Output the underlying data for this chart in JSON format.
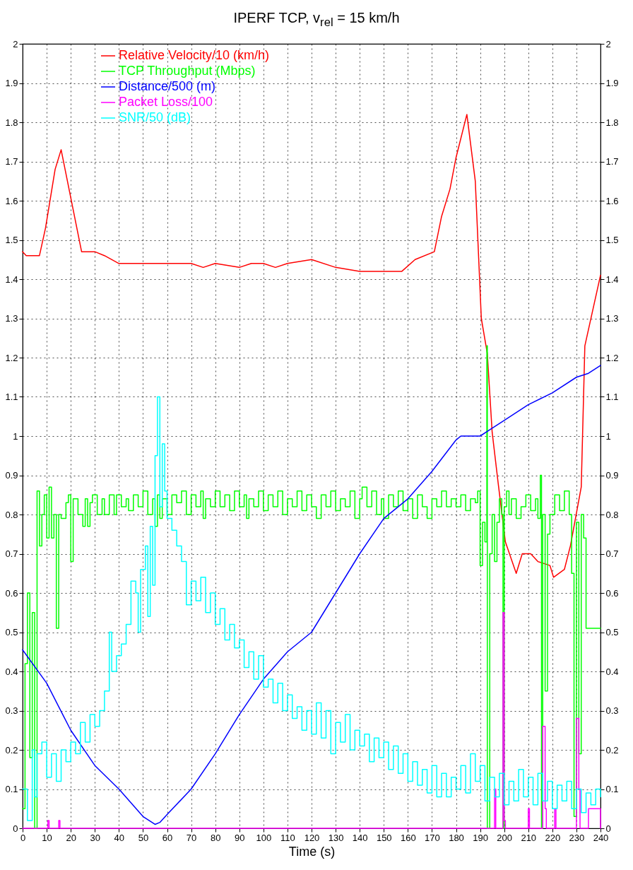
{
  "chart_data": {
    "type": "line",
    "title": "IPERF TCP, v$_{rel}$ = 15 km/h",
    "xlabel": "Time (s)",
    "xlim": [
      0,
      240
    ],
    "xticks": [
      0,
      10,
      20,
      30,
      40,
      50,
      60,
      70,
      80,
      90,
      100,
      110,
      120,
      130,
      140,
      150,
      160,
      170,
      180,
      190,
      200,
      210,
      220,
      230,
      240
    ],
    "ylim": [
      0,
      2
    ],
    "yticks": [
      0,
      0.1,
      0.2,
      0.3,
      0.4,
      0.5,
      0.6,
      0.7,
      0.8,
      0.9,
      1,
      1.1,
      1.2,
      1.3,
      1.4,
      1.5,
      1.6,
      1.7,
      1.8,
      1.9,
      2
    ],
    "y2lim": [
      0,
      2
    ],
    "y2ticks": [
      0,
      0.1,
      0.2,
      0.3,
      0.4,
      0.5,
      0.6,
      0.7,
      0.8,
      0.9,
      1,
      1.1,
      1.2,
      1.3,
      1.4,
      1.5,
      1.6,
      1.7,
      1.8,
      1.9,
      2
    ],
    "grid": true,
    "legend": "top left",
    "series": [
      {
        "name": "Relative Velocity/10 (km/h)",
        "color": "#ff0000",
        "type": "line",
        "x": [
          0,
          1.5,
          7,
          9.5,
          13.5,
          16,
          24.5,
          30,
          34,
          40,
          50,
          60,
          70,
          75,
          80,
          90,
          95,
          100,
          105,
          110,
          120,
          130,
          140,
          150,
          157.5,
          163,
          171,
          174,
          177.5,
          180,
          184.5,
          188,
          190.5,
          193,
          195,
          197.5,
          200.5,
          205,
          207.5,
          211,
          214,
          219,
          220.5,
          225,
          227.5,
          232,
          233.5,
          240
        ],
        "values": [
          1.47,
          1.46,
          1.46,
          1.53,
          1.68,
          1.73,
          1.47,
          1.47,
          1.46,
          1.44,
          1.44,
          1.44,
          1.44,
          1.43,
          1.44,
          1.43,
          1.44,
          1.44,
          1.43,
          1.44,
          1.45,
          1.43,
          1.42,
          1.42,
          1.42,
          1.45,
          1.47,
          1.56,
          1.63,
          1.71,
          1.82,
          1.65,
          1.3,
          1.21,
          1.01,
          0.88,
          0.73,
          0.65,
          0.7,
          0.7,
          0.68,
          0.67,
          0.64,
          0.66,
          0.72,
          0.87,
          1.23,
          1.41
        ]
      },
      {
        "name": "TCP Throughput (Mbps)",
        "color": "#00ff00",
        "type": "step",
        "x": [
          0,
          1,
          2,
          3,
          4,
          5,
          6,
          7,
          8,
          9,
          10,
          11,
          12,
          13,
          14,
          15,
          16,
          18,
          19,
          20,
          21,
          23,
          25,
          26,
          27,
          28,
          29,
          31,
          33,
          34,
          36,
          38,
          39,
          41,
          43,
          44,
          46,
          48,
          50,
          52,
          54,
          55,
          56,
          57,
          58,
          60,
          62,
          64,
          66,
          68,
          70,
          72,
          74,
          75,
          76,
          78,
          80,
          82,
          84,
          86,
          88,
          90,
          92,
          93,
          94,
          96,
          98,
          100,
          102,
          104,
          106,
          108,
          110,
          112,
          114,
          116,
          118,
          120,
          122,
          124,
          126,
          128,
          130,
          132,
          134,
          136,
          138,
          140,
          141,
          143,
          145,
          147,
          149,
          150,
          152,
          154,
          156,
          158,
          160,
          162,
          164,
          166,
          168,
          170,
          172,
          174,
          176,
          178,
          180,
          182,
          184,
          186,
          188,
          189,
          190,
          191,
          192,
          192.8,
          193,
          194,
          195,
          196,
          197,
          198,
          199,
          199.5,
          200,
          201,
          202,
          203,
          205,
          207,
          209,
          211,
          213,
          214,
          215,
          215.5,
          216,
          217,
          218,
          219,
          221,
          223,
          225,
          227,
          228,
          229,
          230,
          231,
          232,
          233,
          234,
          240
        ],
        "values": [
          0.05,
          0.42,
          0.6,
          0.18,
          0.55,
          0,
          0.86,
          0.72,
          0.8,
          0.85,
          0.74,
          0.87,
          0.74,
          0.8,
          0.51,
          0.8,
          0.79,
          0.83,
          0.85,
          0.68,
          0.84,
          0.8,
          0.77,
          0.84,
          0.77,
          0.83,
          0.85,
          0.8,
          0.84,
          0.8,
          0.85,
          0.8,
          0.85,
          0.82,
          0.84,
          0.81,
          0.85,
          0.82,
          0.86,
          0.8,
          0.84,
          0.77,
          0.85,
          0.79,
          0.84,
          0.8,
          0.85,
          0.83,
          0.86,
          0.8,
          0.85,
          0.82,
          0.86,
          0.79,
          0.84,
          0.82,
          0.86,
          0.82,
          0.85,
          0.81,
          0.86,
          0.82,
          0.85,
          0.79,
          0.84,
          0.82,
          0.86,
          0.81,
          0.85,
          0.82,
          0.86,
          0.8,
          0.84,
          0.82,
          0.86,
          0.81,
          0.85,
          0.82,
          0.79,
          0.85,
          0.82,
          0.86,
          0.81,
          0.84,
          0.82,
          0.86,
          0.79,
          0.84,
          0.87,
          0.82,
          0.86,
          0.8,
          0.84,
          0.79,
          0.85,
          0.82,
          0.86,
          0.81,
          0.84,
          0.79,
          0.85,
          0.82,
          0.79,
          0.84,
          0.82,
          0.86,
          0.82,
          0.84,
          0.82,
          0.85,
          0.81,
          0.84,
          0.83,
          0.86,
          0.67,
          0.78,
          0.73,
          1.23,
          0,
          0.7,
          0.8,
          0.68,
          0.78,
          0.84,
          0.8,
          0,
          0.82,
          0.86,
          0.8,
          0.84,
          0.79,
          0.82,
          0.85,
          0.81,
          0.84,
          0.79,
          0.9,
          0,
          0.8,
          0.35,
          0.75,
          0.8,
          0.85,
          0.81,
          0.86,
          0.8,
          0.65,
          0.03,
          0.78,
          0.19,
          0.8,
          0.74,
          0.51,
          0.51
        ]
      },
      {
        "name": "Distance/500 (m)",
        "color": "#0000ff",
        "type": "line",
        "x": [
          0,
          10,
          20,
          30,
          40,
          50,
          55,
          57,
          60,
          70,
          80,
          90,
          100,
          110,
          120,
          130,
          140,
          150,
          160,
          170,
          180,
          182,
          184,
          190,
          195,
          200,
          210,
          220,
          230,
          235,
          240
        ],
        "values": [
          0.455,
          0.37,
          0.25,
          0.16,
          0.1,
          0.03,
          0.01,
          0.015,
          0.035,
          0.1,
          0.19,
          0.29,
          0.38,
          0.45,
          0.5,
          0.6,
          0.7,
          0.79,
          0.84,
          0.91,
          0.99,
          1,
          1,
          1,
          1.02,
          1.04,
          1.08,
          1.11,
          1.15,
          1.16,
          1.18
        ]
      },
      {
        "name": "Packet Loss/100",
        "color": "#ff00ff",
        "type": "step",
        "x": [
          0,
          10.5,
          11,
          15,
          15.5,
          196,
          196.5,
          199.5,
          200,
          200.5,
          210,
          210.5,
          216,
          217,
          217.5,
          221,
          221.5,
          230,
          231,
          231.5,
          235,
          240
        ],
        "values": [
          0,
          0.02,
          0,
          0.02,
          0,
          0.1,
          0,
          0.55,
          0.02,
          0,
          0.05,
          0,
          0.26,
          0.05,
          0,
          0.05,
          0,
          0.28,
          0.1,
          0,
          0.05,
          0
        ]
      },
      {
        "name": "SNR/50 (dB)",
        "color": "#00ffff",
        "type": "step",
        "x": [
          0,
          2,
          4,
          5,
          6,
          8,
          10,
          12,
          14,
          16,
          18,
          20,
          22,
          24,
          26,
          28,
          30,
          32,
          34,
          36,
          37,
          39,
          41,
          43,
          45,
          47,
          48,
          49,
          51,
          52,
          53,
          54,
          55,
          56,
          57,
          58,
          59,
          60,
          62,
          64,
          66,
          68,
          70,
          72,
          74,
          76,
          78,
          80,
          82,
          84,
          86,
          88,
          90,
          92,
          94,
          96,
          98,
          100,
          102,
          104,
          106,
          108,
          110,
          112,
          114,
          116,
          118,
          120,
          122,
          124,
          126,
          128,
          130,
          132,
          134,
          136,
          138,
          140,
          142,
          144,
          146,
          148,
          150,
          152,
          154,
          156,
          158,
          160,
          162,
          164,
          166,
          168,
          170,
          172,
          174,
          176,
          178,
          180,
          182,
          184,
          186,
          188,
          190,
          192,
          194,
          196,
          198,
          200,
          202,
          204,
          206,
          208,
          210,
          212,
          214,
          216,
          218,
          220,
          222,
          224,
          226,
          228,
          230,
          232,
          234,
          236,
          238,
          240
        ],
        "values": [
          0.1,
          0.02,
          0.2,
          0.08,
          0.19,
          0.22,
          0.13,
          0.19,
          0.12,
          0.2,
          0.17,
          0.22,
          0.19,
          0.27,
          0.22,
          0.29,
          0.26,
          0.3,
          0.35,
          0.5,
          0.4,
          0.44,
          0.47,
          0.52,
          0.63,
          0.6,
          0.5,
          0.66,
          0.72,
          0.54,
          0.77,
          0.62,
          0.95,
          1.1,
          0.82,
          0.98,
          0.86,
          0.79,
          0.76,
          0.72,
          0.68,
          0.57,
          0.63,
          0.58,
          0.64,
          0.55,
          0.6,
          0.52,
          0.56,
          0.48,
          0.52,
          0.46,
          0.48,
          0.41,
          0.45,
          0.38,
          0.44,
          0.36,
          0.38,
          0.32,
          0.37,
          0.3,
          0.34,
          0.28,
          0.31,
          0.25,
          0.3,
          0.24,
          0.32,
          0.23,
          0.3,
          0.19,
          0.27,
          0.22,
          0.29,
          0.2,
          0.25,
          0.21,
          0.24,
          0.17,
          0.23,
          0.18,
          0.22,
          0.15,
          0.21,
          0.14,
          0.19,
          0.12,
          0.17,
          0.11,
          0.15,
          0.09,
          0.16,
          0.08,
          0.14,
          0.08,
          0.13,
          0.1,
          0.16,
          0.09,
          0.19,
          0.12,
          0.16,
          0.07,
          0.13,
          0.08,
          0.14,
          0.06,
          0.12,
          0.07,
          0.15,
          0.08,
          0.13,
          0.06,
          0.14,
          0.07,
          0.12,
          0.05,
          0.11,
          0.07,
          0.12,
          0.05,
          0.1,
          0.04,
          0.09,
          0.06,
          0.1,
          0.08
        ]
      }
    ]
  }
}
